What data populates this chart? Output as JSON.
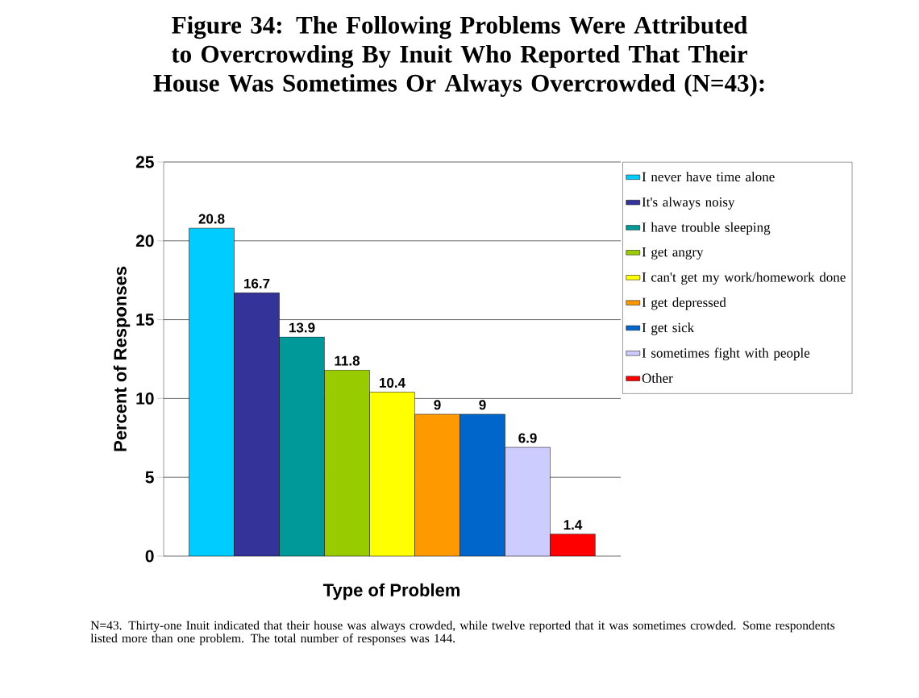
{
  "chart_data": {
    "type": "bar",
    "title": "Figure 34: The Following Problems Were Attributed to Overcrowding By Inuit Who Reported That Their House Was Sometimes Or Always Overcrowded (N=43):",
    "xlabel": "Type of Problem",
    "ylabel": "Percent of Responses",
    "categories": [
      null
    ],
    "series": [
      {
        "name": "I never have time alone",
        "color": "#00ccff",
        "values": [
          20.8
        ]
      },
      {
        "name": "It's always noisy",
        "color": "#333399",
        "values": [
          16.7
        ]
      },
      {
        "name": "I have trouble sleeping",
        "color": "#009999",
        "values": [
          13.9
        ]
      },
      {
        "name": "I get angry",
        "color": "#99cc00",
        "values": [
          11.8
        ]
      },
      {
        "name": "I can't get my work/homework done",
        "color": "#ffff00",
        "values": [
          10.4
        ]
      },
      {
        "name": "I get depressed",
        "color": "#ff9900",
        "values": [
          9
        ]
      },
      {
        "name": "I get sick",
        "color": "#0066cc",
        "values": [
          9
        ]
      },
      {
        "name": "I sometimes fight with people",
        "color": "#ccccff",
        "values": [
          6.9
        ]
      },
      {
        "name": "Other",
        "color": "#ff0000",
        "values": [
          1.4
        ]
      }
    ],
    "ylim": [
      0,
      25
    ],
    "yticks": [
      0,
      5,
      10,
      15,
      20,
      25
    ],
    "grid": "y",
    "legend": "right",
    "data_labels": true,
    "annotations": [
      "N=43.  Thirty-one Inuit indicated that their house was always crowded, while twelve reported that it was sometimes crowded.  Some respondents listed more than one problem.  The total number of responses was 144."
    ]
  }
}
